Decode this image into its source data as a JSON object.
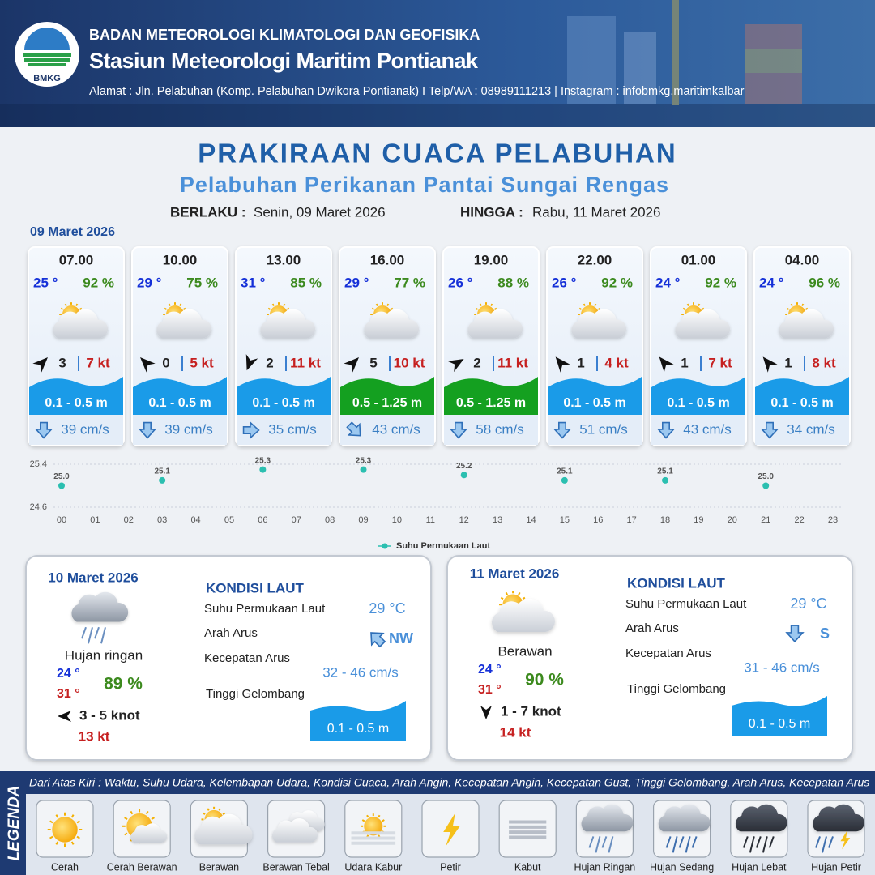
{
  "header": {
    "logo": "BMKG",
    "agency": "BADAN METEOROLOGI KLIMATOLOGI DAN GEOFISIKA",
    "station": "Stasiun Meteorologi Maritim Pontianak",
    "contact": "Alamat : Jln. Pelabuhan (Komp. Pelabuhan Dwikora Pontianak) I Telp/WA : 08989111213 | Instagram : infobmkg.maritimkalbar"
  },
  "title": "PRAKIRAAN CUACA PELABUHAN",
  "subtitle": "Pelabuhan Perikanan Pantai Sungai Rengas",
  "validity": {
    "from_label": "BERLAKU :",
    "from": "Senin, 09 Maret 2026",
    "to_label": "HINGGA :",
    "to": "Rabu, 11 Maret 2026"
  },
  "today": {
    "date": "09 Maret 2026",
    "forecasts": [
      {
        "time": "07.00",
        "temp": "25 °",
        "humidity": "92 %",
        "wind": "3",
        "gust": "7 kt",
        "wave": "0.1 - 0.5 m",
        "wave_color": "#1a9be8",
        "current": "39 cm/s"
      },
      {
        "time": "10.00",
        "temp": "29 °",
        "humidity": "75 %",
        "wind": "0",
        "gust": "5 kt",
        "wave": "0.1 - 0.5 m",
        "wave_color": "#1a9be8",
        "current": "39 cm/s"
      },
      {
        "time": "13.00",
        "temp": "31 °",
        "humidity": "85 %",
        "wind": "2",
        "gust": "11 kt",
        "wave": "0.1 - 0.5 m",
        "wave_color": "#1a9be8",
        "current": "35 cm/s"
      },
      {
        "time": "16.00",
        "temp": "29 °",
        "humidity": "77 %",
        "wind": "5",
        "gust": "10 kt",
        "wave": "0.5 - 1.25 m",
        "wave_color": "#14a020",
        "current": "43 cm/s"
      },
      {
        "time": "19.00",
        "temp": "26 °",
        "humidity": "88 %",
        "wind": "2",
        "gust": "11 kt",
        "wave": "0.5 - 1.25 m",
        "wave_color": "#14a020",
        "current": "58 cm/s"
      },
      {
        "time": "22.00",
        "temp": "26 °",
        "humidity": "92 %",
        "wind": "1",
        "gust": "4 kt",
        "wave": "0.1 - 0.5 m",
        "wave_color": "#1a9be8",
        "current": "51 cm/s"
      },
      {
        "time": "01.00",
        "temp": "24 °",
        "humidity": "92 %",
        "wind": "1",
        "gust": "7 kt",
        "wave": "0.1 - 0.5 m",
        "wave_color": "#1a9be8",
        "current": "43 cm/s"
      },
      {
        "time": "04.00",
        "temp": "24 °",
        "humidity": "96 %",
        "wind": "1",
        "gust": "8 kt",
        "wave": "0.1 - 0.5 m",
        "wave_color": "#1a9be8",
        "current": "34 cm/s"
      }
    ]
  },
  "chart_data": {
    "type": "scatter",
    "x": [
      0,
      3,
      6,
      9,
      12,
      15,
      18,
      21
    ],
    "series": [
      {
        "name": "Suhu Permukaan Laut",
        "color": "#2bbfb0",
        "values": [
          25.0,
          25.1,
          25.3,
          25.3,
          25.2,
          25.1,
          25.1,
          25.0
        ],
        "value_labels": [
          "25.0",
          "25.1",
          "25.3",
          "25.3",
          "25.2",
          "25.1",
          "25.1",
          "25.0"
        ]
      }
    ],
    "xlim": [
      0,
      23
    ],
    "xticks": [
      {
        "value": 0,
        "label": "00"
      },
      {
        "value": 1,
        "label": "01"
      },
      {
        "value": 2,
        "label": "02"
      },
      {
        "value": 3,
        "label": "03"
      },
      {
        "value": 4,
        "label": "04"
      },
      {
        "value": 5,
        "label": "05"
      },
      {
        "value": 6,
        "label": "06"
      },
      {
        "value": 7,
        "label": "07"
      },
      {
        "value": 8,
        "label": "08"
      },
      {
        "value": 9,
        "label": "09"
      },
      10,
      11,
      12,
      13,
      14,
      15,
      16,
      17,
      18,
      19,
      20,
      21,
      22,
      23
    ],
    "ylim": [
      24.6,
      25.4
    ],
    "yticks": [
      24.6,
      25.4
    ]
  },
  "days": [
    {
      "date": "10 Maret 2026",
      "weather": "Hujan ringan",
      "temp_min": "24 °",
      "temp_max": "31 °",
      "humidity": "89 %",
      "wind": "3  - 5 knot",
      "gust": "13 kt",
      "sea": {
        "title": "KONDISI LAUT",
        "sst_label": "Suhu Permukaan Laut",
        "dir_label": "Arah Arus",
        "speed_label": "Kecepatan Arus",
        "wave_label": "Tinggi Gelombang",
        "sst": "29 °C",
        "current_dir": "NW",
        "current_speed": "32 - 46 cm/s",
        "wave": "0.1 - 0.5 m"
      }
    },
    {
      "date": "11 Maret 2026",
      "weather": "Berawan",
      "temp_min": "24 °",
      "temp_max": "31 °",
      "humidity": "90 %",
      "wind": "1  - 7 knot",
      "gust": "14 kt",
      "sea": {
        "title": "KONDISI LAUT",
        "sst_label": "Suhu Permukaan Laut",
        "dir_label": "Arah Arus",
        "speed_label": "Kecepatan Arus",
        "wave_label": "Tinggi Gelombang",
        "sst": "29 °C",
        "current_dir": "S",
        "current_speed": "31 - 46 cm/s",
        "wave": "0.1 - 0.5 m"
      }
    }
  ],
  "legend": {
    "title": "LEGENDA",
    "description": "Dari Atas Kiri : Waktu, Suhu Udara, Kelembapan Udara, Kondisi Cuaca, Arah Angin, Kecepatan Angin, Kecepatan Gust, Tinggi Gelombang, Arah Arus, Kecepatan Arus",
    "items": [
      "Cerah",
      "Cerah Berawan",
      "Berawan",
      "Berawan Tebal",
      "Udara Kabur",
      "Petir",
      "Kabut",
      "Hujan Ringan",
      "Hujan Sedang",
      "Hujan Lebat",
      "Hujan Petir"
    ]
  }
}
